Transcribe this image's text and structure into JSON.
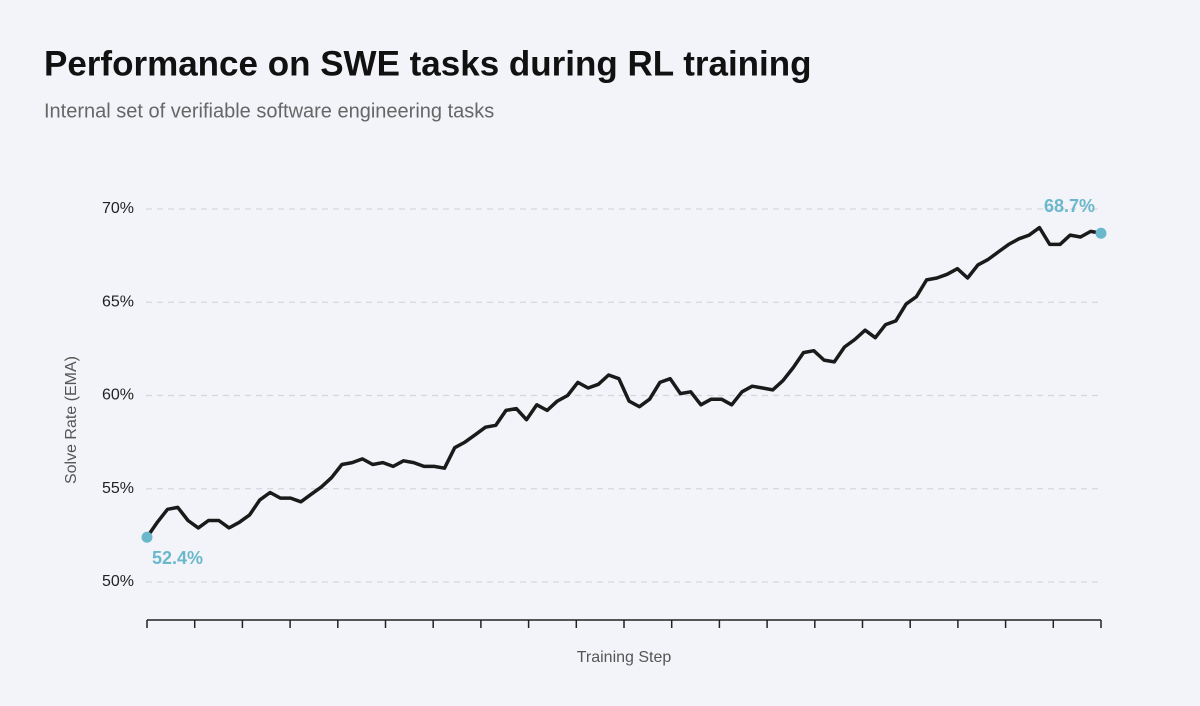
{
  "chart_data": {
    "type": "line",
    "title": "Performance on SWE tasks during RL training",
    "subtitle": "Internal set of verifiable software engineering tasks",
    "x_label": "Training Step",
    "y_label": "Solve Rate (EMA)",
    "ylim": [
      48,
      71
    ],
    "yticks": [
      {
        "value": 50,
        "label": "50%"
      },
      {
        "value": 55,
        "label": "55%"
      },
      {
        "value": 60,
        "label": "60%"
      },
      {
        "value": 65,
        "label": "65%"
      },
      {
        "value": 70,
        "label": "70%"
      }
    ],
    "grid": true,
    "series": [
      {
        "color": "#1a1a1a",
        "values": [
          52.4,
          53.2,
          53.9,
          54.0,
          53.3,
          52.9,
          53.3,
          53.3,
          52.9,
          53.2,
          53.6,
          54.4,
          54.8,
          54.5,
          54.5,
          54.3,
          54.7,
          55.1,
          55.6,
          56.3,
          56.4,
          56.6,
          56.3,
          56.4,
          56.2,
          56.5,
          56.4,
          56.2,
          56.2,
          56.1,
          57.2,
          57.5,
          57.9,
          58.3,
          58.4,
          59.2,
          59.3,
          58.7,
          59.5,
          59.2,
          59.7,
          60.0,
          60.7,
          60.4,
          60.6,
          61.1,
          60.9,
          59.7,
          59.4,
          59.8,
          60.7,
          60.9,
          60.1,
          60.2,
          59.5,
          59.8,
          59.8,
          59.5,
          60.2,
          60.5,
          60.4,
          60.3,
          60.8,
          61.5,
          62.3,
          62.4,
          61.9,
          61.8,
          62.6,
          63.0,
          63.5,
          63.1,
          63.8,
          64.0,
          64.9,
          65.3,
          66.2,
          66.3,
          66.5,
          66.8,
          66.3,
          67.0,
          67.3,
          67.7,
          68.1,
          68.4,
          68.6,
          69.0,
          68.1,
          68.1,
          68.6,
          68.5,
          68.8,
          68.7
        ]
      }
    ],
    "annotations": [
      {
        "label": "52.4%",
        "value": 52.4,
        "color": "#6bb8cc"
      },
      {
        "label": "68.7%",
        "value": 68.7,
        "color": "#6bb8cc"
      }
    ]
  }
}
